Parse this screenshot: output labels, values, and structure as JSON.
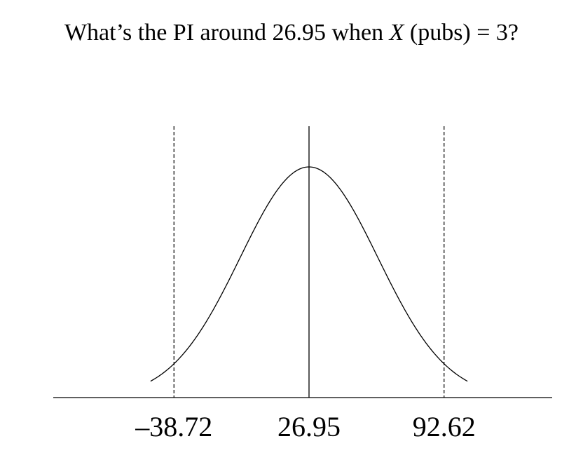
{
  "title": {
    "pre": "What’s the PI around 26.95 when ",
    "var": "X",
    "post": " (pubs) = 3?"
  },
  "chart_data": {
    "type": "line",
    "title": "What’s the PI around 26.95 when X (pubs) = 3?",
    "xlabel": "",
    "ylabel": "",
    "center": 26.95,
    "interval": [
      -38.72,
      92.62
    ],
    "tick_labels": [
      "–38.72",
      "26.95",
      "92.62"
    ],
    "tick_values": [
      -38.72,
      26.95,
      92.62
    ],
    "series": [
      {
        "kind": "normal-density-curve",
        "mean": 26.95,
        "sd": 33.5
      }
    ],
    "xlim": [
      -138,
      185
    ],
    "grid": false,
    "legend": "none"
  }
}
